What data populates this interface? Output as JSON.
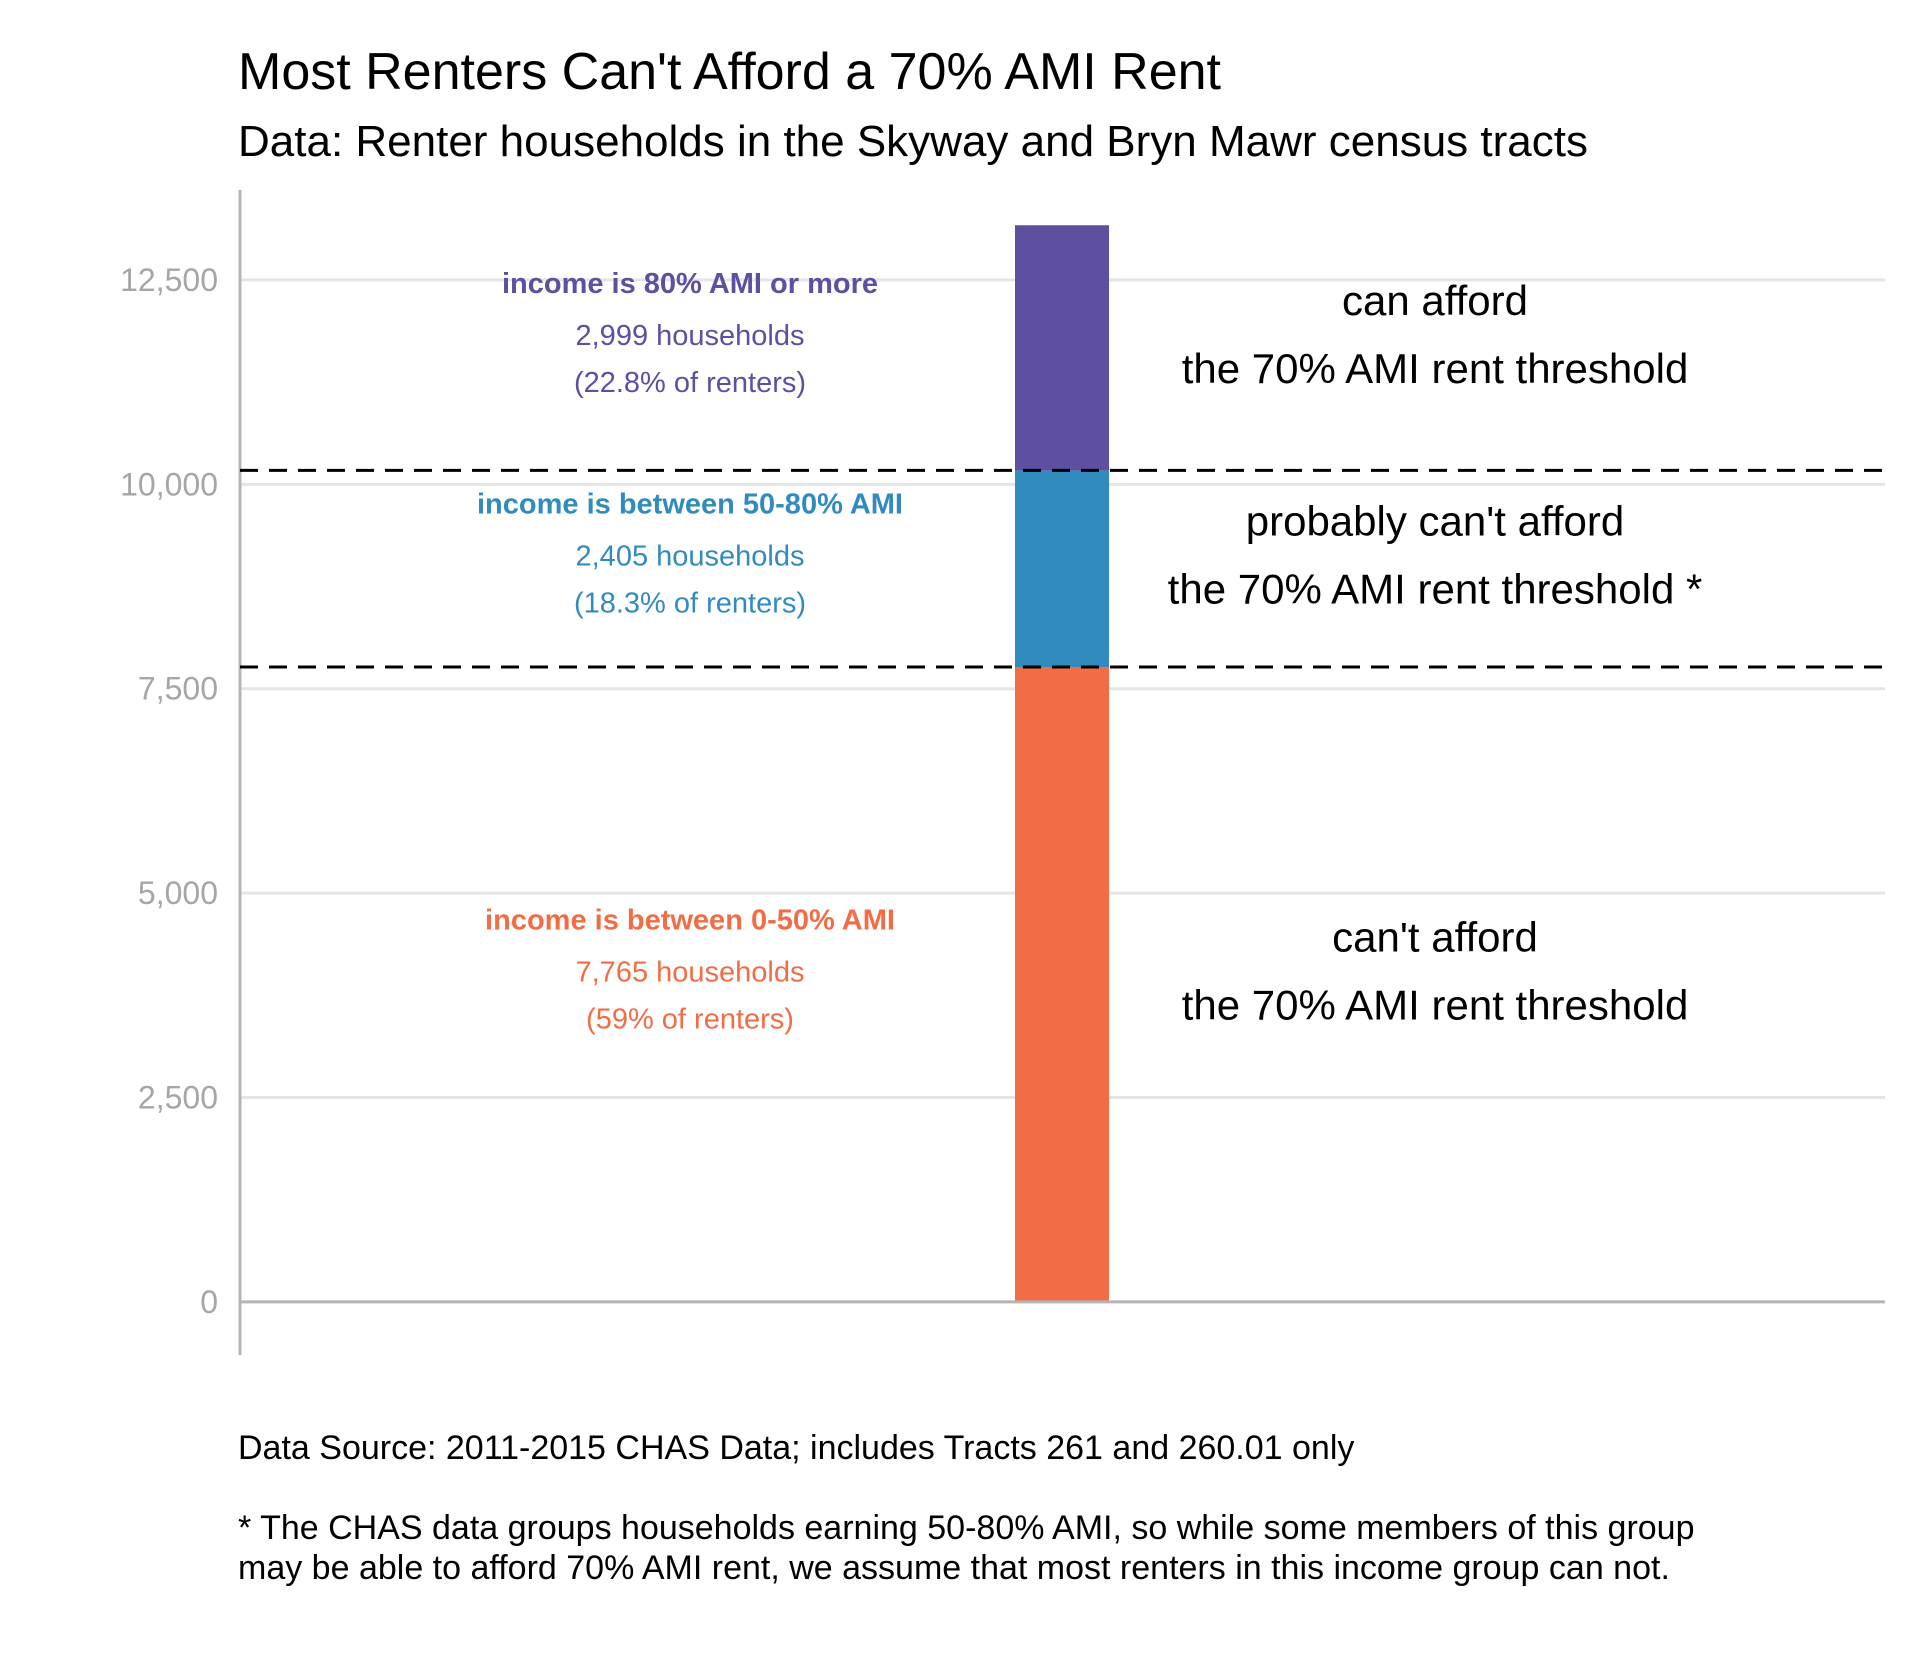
{
  "header": {
    "title": "Most Renters Can't Afford a 70% AMI Rent",
    "subtitle": "Data: Renter households in the Skyway and Bryn Mawr census tracts"
  },
  "footer": {
    "source": "Data Source: 2011-2015 CHAS Data; includes Tracts 261 and 260.01 only",
    "note": "* The CHAS data groups households earning 50-80% AMI, so while some members of this group may be able to afford 70% AMI rent, we assume that most renters in this income group can not."
  },
  "chart_data": {
    "type": "bar",
    "stacked": true,
    "ylim": [
      -650,
      13600
    ],
    "yticks": [
      0,
      2500,
      5000,
      7500,
      10000,
      12500
    ],
    "ytick_labels": [
      "0",
      "2,500",
      "5,000",
      "7,500",
      "10,000",
      "12,500"
    ],
    "grid": "horizontal",
    "series": [
      {
        "value": 7765,
        "color": "#f26d45",
        "label": "income is between 0-50% AMI",
        "households": "7,765 households",
        "share": "(59% of renters)",
        "annotation": [
          "can't afford",
          "the 70% AMI rent threshold"
        ]
      },
      {
        "value": 2405,
        "color": "#318bbf",
        "label": "income is between 50-80% AMI",
        "households": "2,405 households",
        "share": "(18.3% of renters)",
        "annotation": [
          "probably can't afford",
          "the 70% AMI rent threshold *"
        ]
      },
      {
        "value": 2999,
        "color": "#5f4fa1",
        "label": "income is 80% AMI or more",
        "households": "2,999 households",
        "share": "(22.8% of renters)",
        "annotation": [
          "can afford",
          "the 70% AMI rent threshold"
        ]
      }
    ],
    "reference_lines": [
      7765,
      10170
    ]
  }
}
